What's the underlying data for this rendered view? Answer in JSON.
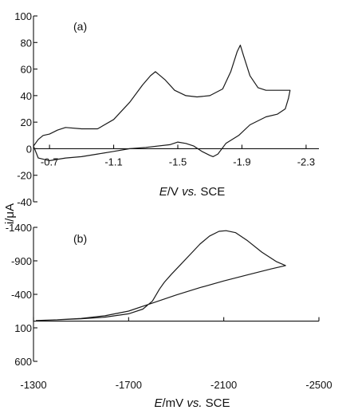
{
  "shared_ylabel": "i/μA",
  "chart_data": [
    {
      "type": "line",
      "panel_label": "(a)",
      "xlabel": {
        "italic": "E",
        "rest": "/V ",
        "vs": "vs.",
        "ref": " SCE"
      },
      "xlim": [
        -0.6,
        -2.38
      ],
      "ylim": [
        -40,
        100
      ],
      "x_axis_at_y": 0,
      "x_ticks": [
        -0.7,
        -1.1,
        -1.5,
        -1.9,
        -2.3
      ],
      "x_tick_labels": [
        "-0.7",
        "-1.1",
        "-1.5",
        "-1.9",
        "-2.3"
      ],
      "y_ticks": [
        100,
        80,
        60,
        40,
        20,
        0,
        -20,
        -40
      ],
      "y_tick_labels": [
        "100",
        "80",
        "60",
        "40",
        "20",
        "0",
        "-20",
        "-40"
      ],
      "series": [
        {
          "x": [
            -0.6,
            -0.63,
            -0.66,
            -0.7,
            -0.75,
            -0.8,
            -0.9,
            -1.0,
            -1.1,
            -1.2,
            -1.28,
            -1.33,
            -1.36,
            -1.38,
            -1.42,
            -1.48,
            -1.55,
            -1.62,
            -1.7,
            -1.78,
            -1.83,
            -1.87,
            -1.89,
            -1.91,
            -1.95,
            -2.0,
            -2.05,
            -2.15,
            -2.2,
            -2.19,
            -2.17,
            -2.12,
            -2.05,
            -1.95,
            -1.88,
            -1.8,
            -1.75,
            -1.72,
            -1.7,
            -1.65,
            -1.6,
            -1.55,
            -1.5,
            -1.45,
            -1.3,
            -1.2,
            -1.1,
            -1.0,
            -0.9,
            -0.8,
            -0.7,
            -0.63,
            -0.6
          ],
          "y": [
            2,
            7,
            10,
            11,
            14,
            16,
            15,
            15,
            22,
            35,
            48,
            55,
            58,
            56,
            52,
            44,
            40,
            39,
            40,
            45,
            58,
            73,
            78,
            70,
            55,
            46,
            44,
            44,
            44,
            38,
            30,
            26,
            24,
            18,
            10,
            4,
            -4,
            -6,
            -5,
            -2,
            2,
            4,
            5,
            3,
            1,
            0,
            -2,
            -4,
            -6,
            -7,
            -9,
            -7,
            2
          ]
        }
      ]
    },
    {
      "type": "line",
      "panel_label": "(b)",
      "xlabel": {
        "italic": "E",
        "rest": "/mV ",
        "vs": "vs.",
        "ref": " SCE"
      },
      "xlim": [
        -1300,
        -2500
      ],
      "ylim": [
        600,
        -1400
      ],
      "x_axis_at_y": 0,
      "x_ticks": [
        -1300,
        -1700,
        -2100,
        -2500
      ],
      "x_tick_labels": [
        "-1300",
        "-1700",
        "-2100",
        "-2500"
      ],
      "y_ticks": [
        -1400,
        -900,
        -400,
        100,
        600
      ],
      "y_tick_labels": [
        "-1400",
        "-900",
        "-400",
        "100",
        "600"
      ],
      "series": [
        {
          "x": [
            -1310,
            -1400,
            -1500,
            -1600,
            -1700,
            -1760,
            -1800,
            -1830,
            -1850,
            -1880,
            -1920,
            -1960,
            -2000,
            -2040,
            -2080,
            -2110,
            -2150,
            -2200,
            -2260,
            -2320,
            -2360,
            -2300,
            -2200,
            -2100,
            -2000,
            -1900,
            -1800,
            -1700,
            -1600,
            -1500,
            -1400,
            -1310
          ],
          "y": [
            -10,
            -20,
            -35,
            -60,
            -110,
            -180,
            -300,
            -480,
            -580,
            -700,
            -850,
            -1000,
            -1150,
            -1270,
            -1340,
            -1350,
            -1320,
            -1200,
            -1030,
            -890,
            -830,
            -780,
            -690,
            -600,
            -500,
            -390,
            -270,
            -150,
            -80,
            -40,
            -20,
            -10
          ]
        }
      ]
    }
  ]
}
